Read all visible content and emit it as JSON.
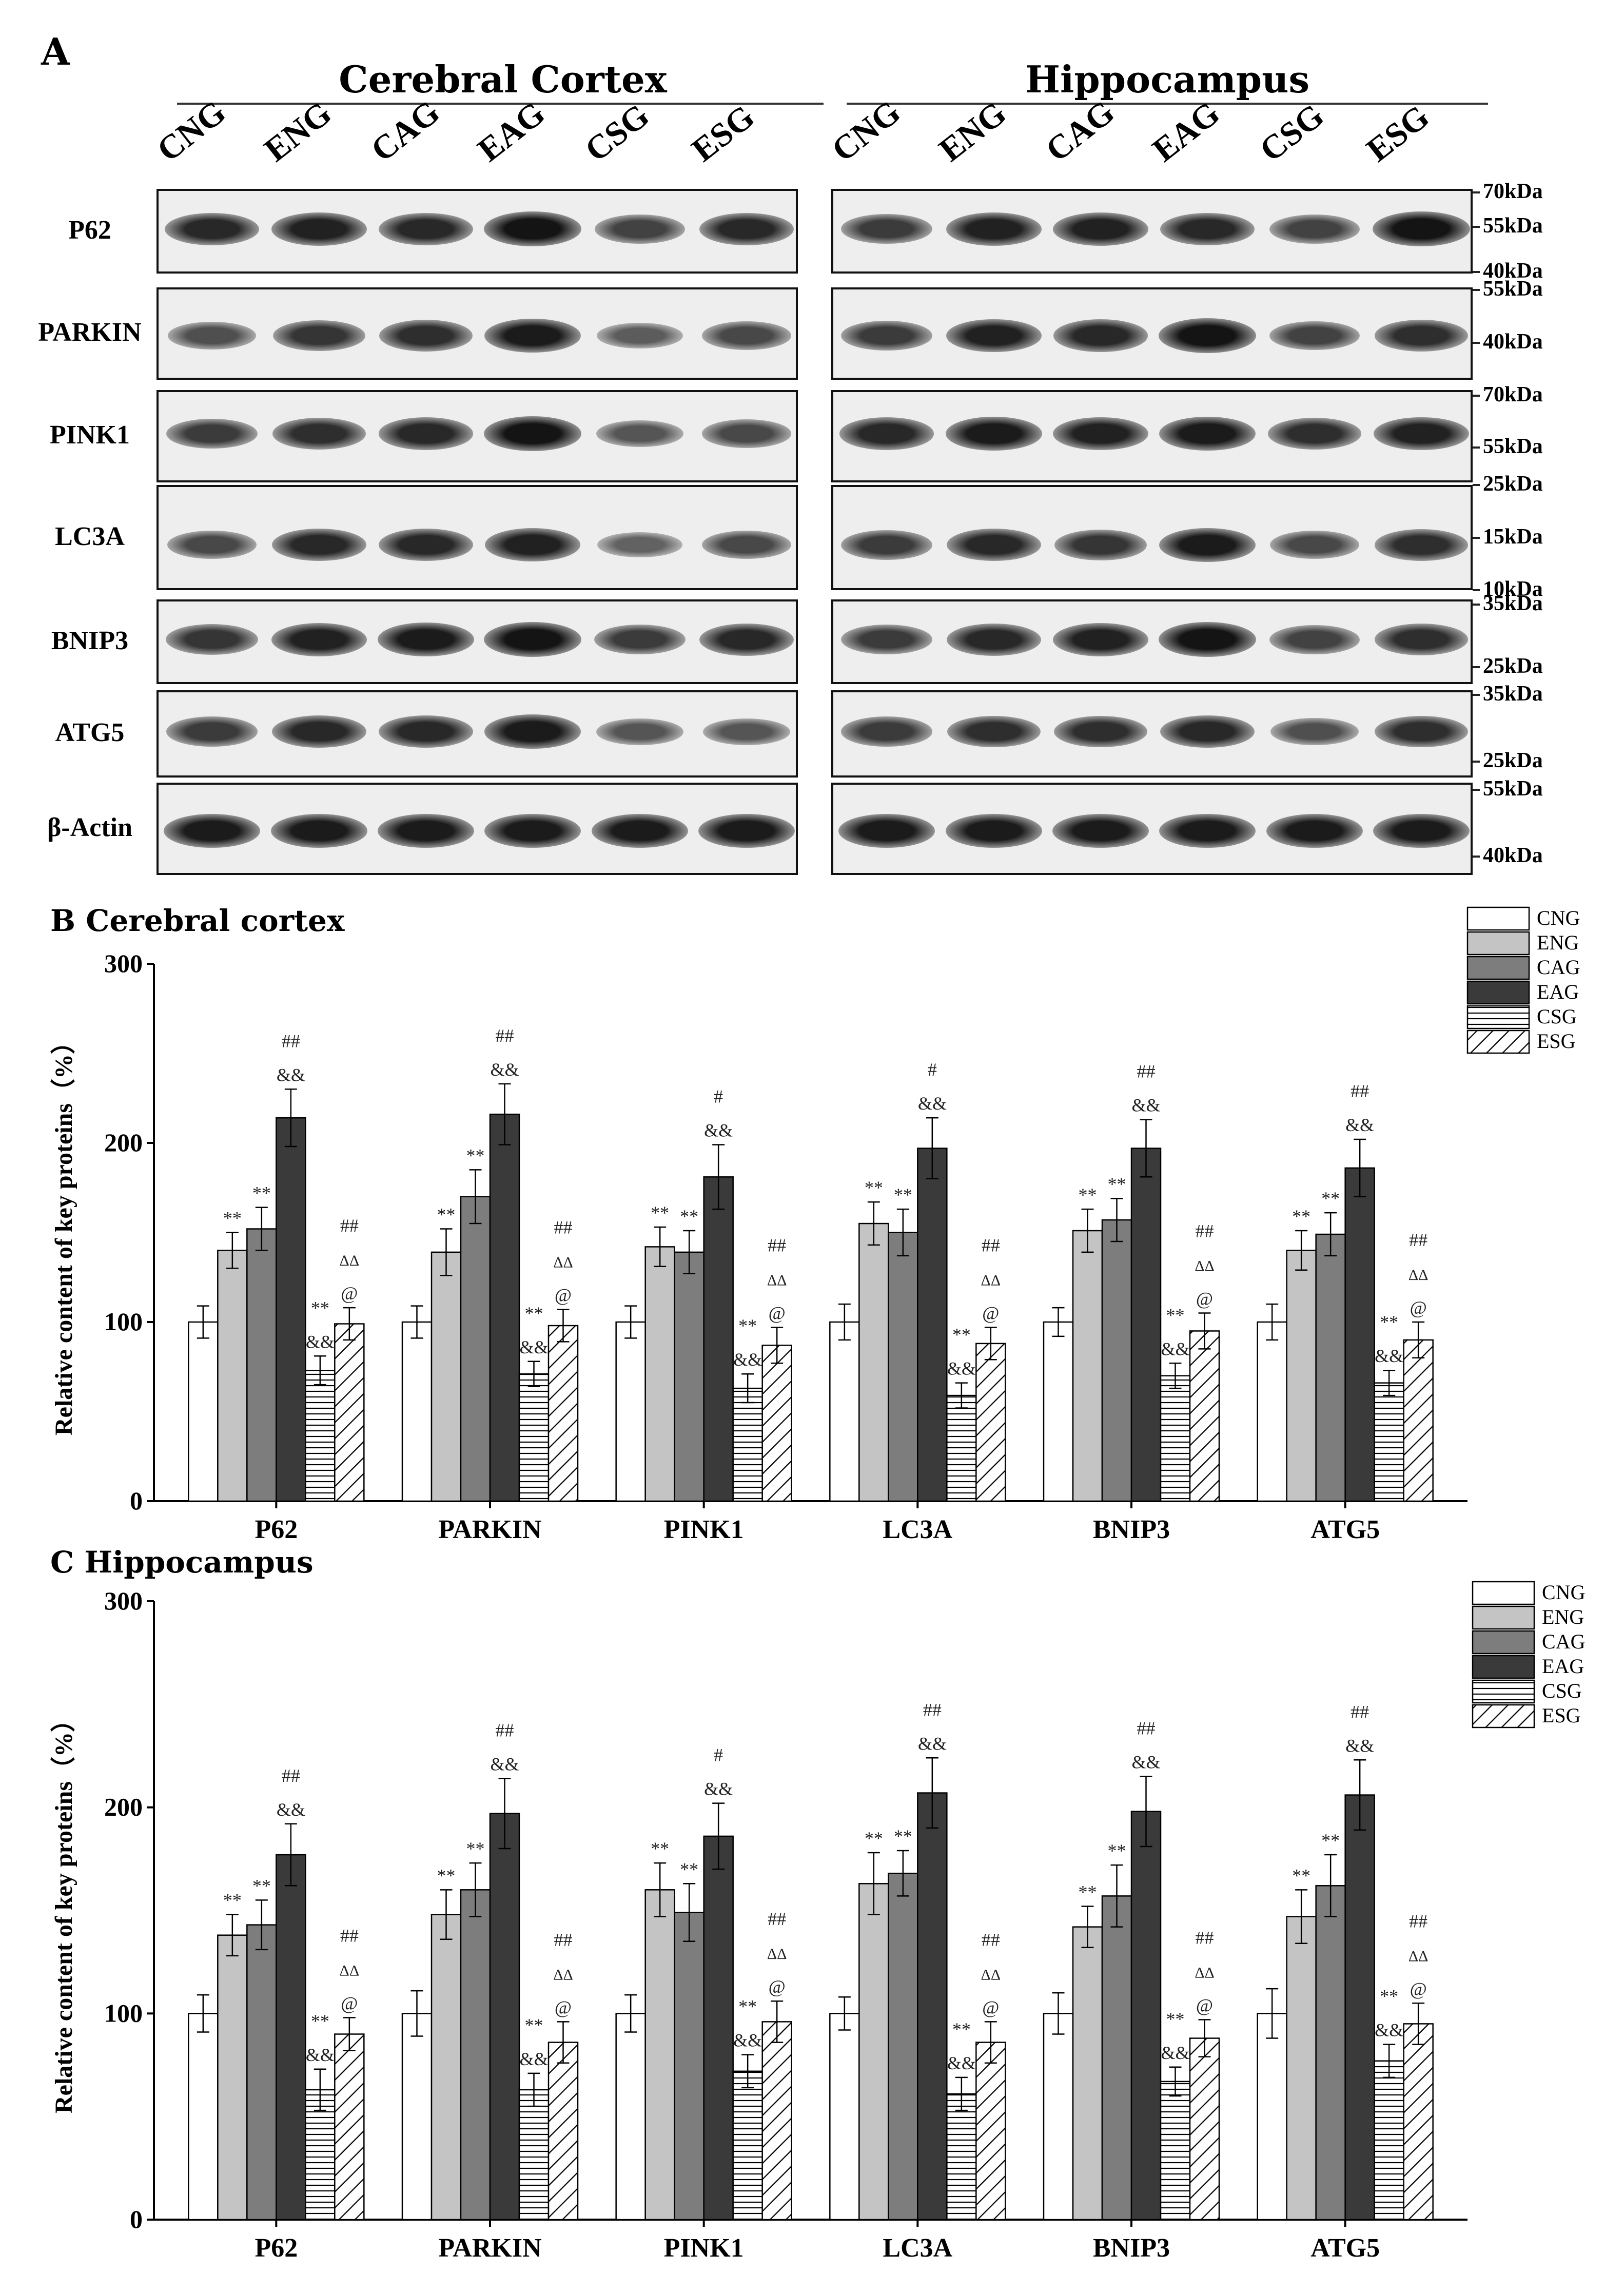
{
  "panel_a": {
    "letter": "A",
    "sections": [
      "Cerebral Cortex",
      "Hippocampus"
    ],
    "lanes": [
      "CNG",
      "ENG",
      "CAG",
      "EAG",
      "CSG",
      "ESG"
    ],
    "proteins": [
      "P62",
      "PARKIN",
      "PINK1",
      "LC3A",
      "BNIP3",
      "ATG5",
      "β-Actin"
    ],
    "markers": [
      [
        "70kDa",
        "55kDa",
        "40kDa"
      ],
      [
        "55kDa",
        "40kDa"
      ],
      [
        "70kDa",
        "55kDa"
      ],
      [
        "25kDa",
        "15kDa",
        "10kDa"
      ],
      [
        "35kDa",
        "25kDa"
      ],
      [
        "35kDa",
        "25kDa"
      ],
      [
        "55kDa",
        "40kDa"
      ]
    ],
    "band_intensity": {
      "cortex": [
        [
          0.85,
          0.9,
          0.85,
          1.0,
          0.65,
          0.85
        ],
        [
          0.55,
          0.75,
          0.8,
          0.95,
          0.45,
          0.6
        ],
        [
          0.7,
          0.8,
          0.85,
          1.0,
          0.5,
          0.6
        ],
        [
          0.6,
          0.85,
          0.85,
          0.9,
          0.4,
          0.6
        ],
        [
          0.75,
          0.9,
          0.95,
          1.0,
          0.7,
          0.85
        ],
        [
          0.7,
          0.85,
          0.85,
          0.95,
          0.5,
          0.5
        ],
        [
          0.95,
          0.95,
          0.95,
          0.95,
          0.95,
          0.95
        ]
      ],
      "hippocampus": [
        [
          0.7,
          0.9,
          0.9,
          0.85,
          0.65,
          1.0
        ],
        [
          0.7,
          0.9,
          0.85,
          1.0,
          0.65,
          0.8
        ],
        [
          0.85,
          0.95,
          0.9,
          0.95,
          0.8,
          0.9
        ],
        [
          0.7,
          0.85,
          0.75,
          0.95,
          0.6,
          0.8
        ],
        [
          0.7,
          0.85,
          0.9,
          1.0,
          0.65,
          0.8
        ],
        [
          0.7,
          0.8,
          0.8,
          0.85,
          0.55,
          0.8
        ],
        [
          0.95,
          0.95,
          0.95,
          0.95,
          0.95,
          0.95
        ]
      ]
    }
  },
  "chart_data": [
    {
      "panel": "B",
      "title": "B  Cerebral cortex",
      "type": "bar",
      "ylabel": "Relative content of key proteins（%）",
      "ylim": [
        0,
        300
      ],
      "yticks": [
        "0",
        "100",
        "200",
        "300"
      ],
      "categories": [
        "P62",
        "PARKIN",
        "PINK1",
        "LC3A",
        "BNIP3",
        "ATG5"
      ],
      "legend": [
        "CNG",
        "ENG",
        "CAG",
        "EAG",
        "CSG",
        "ESG"
      ],
      "series": [
        {
          "name": "CNG",
          "values": [
            100,
            100,
            100,
            100,
            100,
            100
          ],
          "errors": [
            9,
            9,
            9,
            10,
            8,
            10
          ],
          "labels": [
            [],
            [],
            [],
            [],
            [],
            []
          ]
        },
        {
          "name": "ENG",
          "values": [
            140,
            139,
            142,
            155,
            151,
            140
          ],
          "errors": [
            10,
            13,
            11,
            12,
            12,
            11
          ],
          "labels": [
            [
              "**"
            ],
            [
              "**"
            ],
            [
              "**"
            ],
            [
              "**"
            ],
            [
              "**"
            ],
            [
              "**"
            ]
          ]
        },
        {
          "name": "CAG",
          "values": [
            152,
            170,
            139,
            150,
            157,
            149
          ],
          "errors": [
            12,
            15,
            12,
            13,
            12,
            12
          ],
          "labels": [
            [
              "**"
            ],
            [
              "**"
            ],
            [
              "**"
            ],
            [
              "**"
            ],
            [
              "**"
            ],
            [
              "**"
            ]
          ]
        },
        {
          "name": "EAG",
          "values": [
            214,
            216,
            181,
            197,
            197,
            186
          ],
          "errors": [
            16,
            17,
            18,
            17,
            16,
            16
          ],
          "labels": [
            [
              "&&",
              "##"
            ],
            [
              "&&",
              "##"
            ],
            [
              "&&",
              "#"
            ],
            [
              "&&",
              "#"
            ],
            [
              "&&",
              "##"
            ],
            [
              "&&",
              "##"
            ]
          ]
        },
        {
          "name": "CSG",
          "values": [
            73,
            71,
            63,
            59,
            70,
            66
          ],
          "errors": [
            8,
            7,
            8,
            7,
            7,
            7
          ],
          "labels": [
            [
              "&&",
              "**"
            ],
            [
              "&&",
              "**"
            ],
            [
              "&&",
              "**"
            ],
            [
              "&&",
              "**"
            ],
            [
              "&&",
              "**"
            ],
            [
              "&&",
              "**"
            ]
          ]
        },
        {
          "name": "ESG",
          "values": [
            99,
            98,
            87,
            88,
            95,
            90
          ],
          "errors": [
            9,
            9,
            10,
            9,
            10,
            10
          ],
          "labels": [
            [
              "@",
              "ΔΔ",
              "##"
            ],
            [
              "@",
              "ΔΔ",
              "##"
            ],
            [
              "@",
              "ΔΔ",
              "##"
            ],
            [
              "@",
              "ΔΔ",
              "##"
            ],
            [
              "@",
              "ΔΔ",
              "##"
            ],
            [
              "@",
              "ΔΔ",
              "##"
            ]
          ]
        }
      ]
    },
    {
      "panel": "C",
      "title": "C Hippocampus",
      "type": "bar",
      "ylabel": "Relative content of key proteins（%）",
      "ylim": [
        0,
        300
      ],
      "yticks": [
        "0",
        "100",
        "200",
        "300"
      ],
      "categories": [
        "P62",
        "PARKIN",
        "PINK1",
        "LC3A",
        "BNIP3",
        "ATG5"
      ],
      "legend": [
        "CNG",
        "ENG",
        "CAG",
        "EAG",
        "CSG",
        "ESG"
      ],
      "series": [
        {
          "name": "CNG",
          "values": [
            100,
            100,
            100,
            100,
            100,
            100
          ],
          "errors": [
            9,
            11,
            9,
            8,
            10,
            12
          ],
          "labels": [
            [],
            [],
            [],
            [],
            [],
            []
          ]
        },
        {
          "name": "ENG",
          "values": [
            138,
            148,
            160,
            163,
            142,
            147
          ],
          "errors": [
            10,
            12,
            13,
            15,
            10,
            13
          ],
          "labels": [
            [
              "**"
            ],
            [
              "**"
            ],
            [
              "**"
            ],
            [
              "**"
            ],
            [
              "**"
            ],
            [
              "**"
            ]
          ]
        },
        {
          "name": "CAG",
          "values": [
            143,
            160,
            149,
            168,
            157,
            162
          ],
          "errors": [
            12,
            13,
            14,
            11,
            15,
            15
          ],
          "labels": [
            [
              "**"
            ],
            [
              "**"
            ],
            [
              "**"
            ],
            [
              "**"
            ],
            [
              "**"
            ],
            [
              "**"
            ]
          ]
        },
        {
          "name": "EAG",
          "values": [
            177,
            197,
            186,
            207,
            198,
            206
          ],
          "errors": [
            15,
            17,
            16,
            17,
            17,
            17
          ],
          "labels": [
            [
              "&&",
              "##"
            ],
            [
              "&&",
              "##"
            ],
            [
              "&&",
              "#"
            ],
            [
              "&&",
              "##"
            ],
            [
              "&&",
              "##"
            ],
            [
              "&&",
              "##"
            ]
          ]
        },
        {
          "name": "CSG",
          "values": [
            63,
            63,
            72,
            61,
            67,
            77
          ],
          "errors": [
            10,
            8,
            8,
            8,
            7,
            8
          ],
          "labels": [
            [
              "&&",
              "**"
            ],
            [
              "&&",
              "**"
            ],
            [
              "&&",
              "**"
            ],
            [
              "&&",
              "**"
            ],
            [
              "&&",
              "**"
            ],
            [
              "&&",
              "**"
            ]
          ]
        },
        {
          "name": "ESG",
          "values": [
            90,
            86,
            96,
            86,
            88,
            95
          ],
          "errors": [
            8,
            10,
            10,
            10,
            9,
            10
          ],
          "labels": [
            [
              "@",
              "ΔΔ",
              "##"
            ],
            [
              "@",
              "ΔΔ",
              "##"
            ],
            [
              "@",
              "ΔΔ",
              "##"
            ],
            [
              "@",
              "ΔΔ",
              "##"
            ],
            [
              "@",
              "ΔΔ",
              "##"
            ],
            [
              "@",
              "ΔΔ",
              "##"
            ]
          ]
        }
      ]
    }
  ],
  "colors": {
    "CNG": "#ffffff",
    "ENG": "#c4c4c4",
    "CAG": "#7d7d7d",
    "EAG": "#3a3a3a",
    "axis": "#000000"
  }
}
